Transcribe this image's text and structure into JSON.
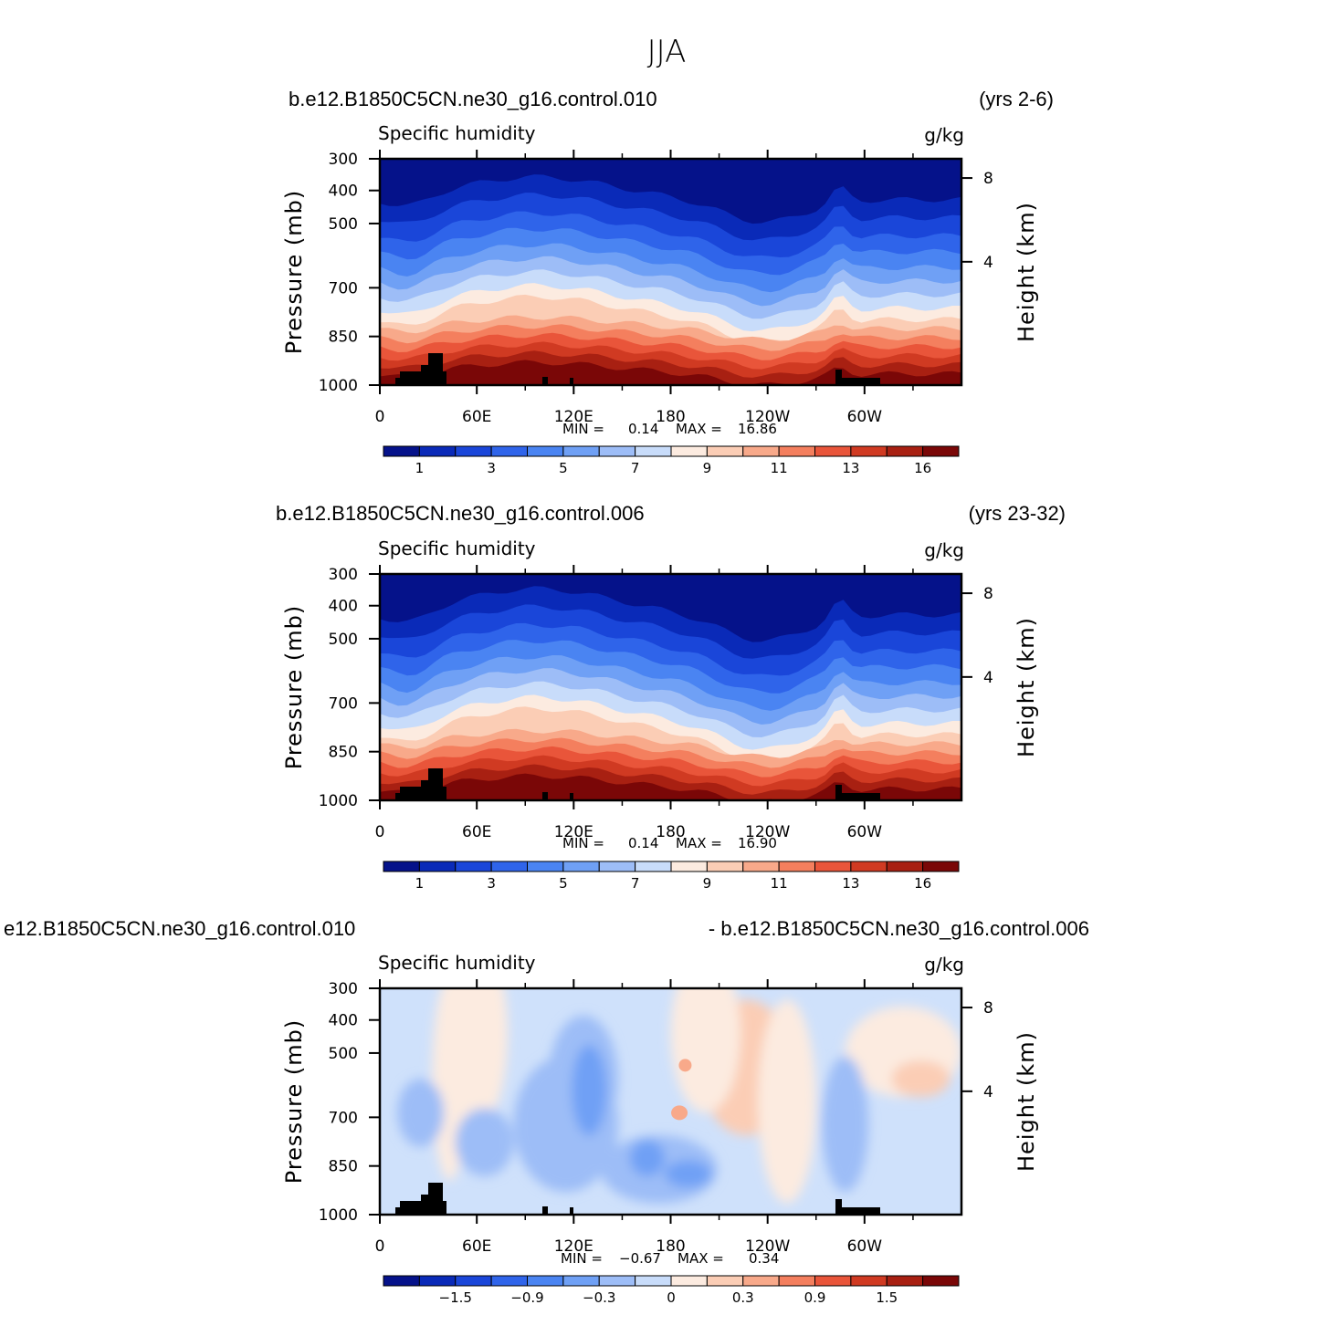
{
  "title": "JJA",
  "units": "g/kg",
  "variable": "Specific humidity",
  "colorbar_colors": [
    "#05128a",
    "#0a2ab8",
    "#1a46d9",
    "#2f64ea",
    "#4a84f2",
    "#6fa0f5",
    "#9dbdf7",
    "#c8dcfa",
    "#fcebe0",
    "#fbcdb5",
    "#f8a98a",
    "#f47f5e",
    "#e9553a",
    "#d03a22",
    "#a82012",
    "#7a0707"
  ],
  "chart_data": [
    {
      "type": "heatmap",
      "title_left": "b.e12.B1850C5CN.ne30_g16.control.010",
      "title_right": "(yrs 2-6)",
      "variable": "Specific humidity",
      "units": "g/kg",
      "ylabel": "Pressure (mb)",
      "ylabel_right": "Height (km)",
      "yticks": [
        "300",
        "400",
        "500",
        "700",
        "850",
        "1000"
      ],
      "yticks_right": [
        "8",
        "4"
      ],
      "xticks": [
        "0",
        "60E",
        "120E",
        "180",
        "120W",
        "60W"
      ],
      "min_label": "MIN =",
      "min_value": "0.14",
      "max_label": "MAX =",
      "max_value": "16.86",
      "colorbar_labels": [
        "1",
        "3",
        "5",
        "7",
        "9",
        "11",
        "13",
        "16"
      ],
      "levels": [
        0.5,
        1,
        2,
        3,
        4,
        5,
        6,
        7,
        8,
        9,
        10,
        11,
        12,
        13,
        14,
        16
      ],
      "zmin": 0.14,
      "zmax": 16.86
    },
    {
      "type": "heatmap",
      "title_left": "b.e12.B1850C5CN.ne30_g16.control.006",
      "title_right": "(yrs 23-32)",
      "variable": "Specific humidity",
      "units": "g/kg",
      "ylabel": "Pressure (mb)",
      "ylabel_right": "Height (km)",
      "yticks": [
        "300",
        "400",
        "500",
        "700",
        "850",
        "1000"
      ],
      "yticks_right": [
        "8",
        "4"
      ],
      "xticks": [
        "0",
        "60E",
        "120E",
        "180",
        "120W",
        "60W"
      ],
      "min_label": "MIN =",
      "min_value": "0.14",
      "max_label": "MAX =",
      "max_value": "16.90",
      "colorbar_labels": [
        "1",
        "3",
        "5",
        "7",
        "9",
        "11",
        "13",
        "16"
      ],
      "levels": [
        0.5,
        1,
        2,
        3,
        4,
        5,
        6,
        7,
        8,
        9,
        10,
        11,
        12,
        13,
        14,
        16
      ],
      "zmin": 0.14,
      "zmax": 16.9
    },
    {
      "type": "heatmap",
      "title_left": "e12.B1850C5CN.ne30_g16.control.010",
      "title_right": "- b.e12.B1850C5CN.ne30_g16.control.006",
      "variable": "Specific humidity",
      "units": "g/kg",
      "ylabel": "Pressure (mb)",
      "ylabel_right": "Height (km)",
      "yticks": [
        "300",
        "400",
        "500",
        "700",
        "850",
        "1000"
      ],
      "yticks_right": [
        "8",
        "4"
      ],
      "xticks": [
        "0",
        "60E",
        "120E",
        "180",
        "120W",
        "60W"
      ],
      "min_label": "MIN =",
      "min_value": "−0.67",
      "max_label": "MAX =",
      "max_value": "0.34",
      "colorbar_labels": [
        "−1.5",
        "−0.9",
        "−0.3",
        "0",
        "0.3",
        "0.9",
        "1.5"
      ],
      "zmin": -0.67,
      "zmax": 0.34
    }
  ]
}
